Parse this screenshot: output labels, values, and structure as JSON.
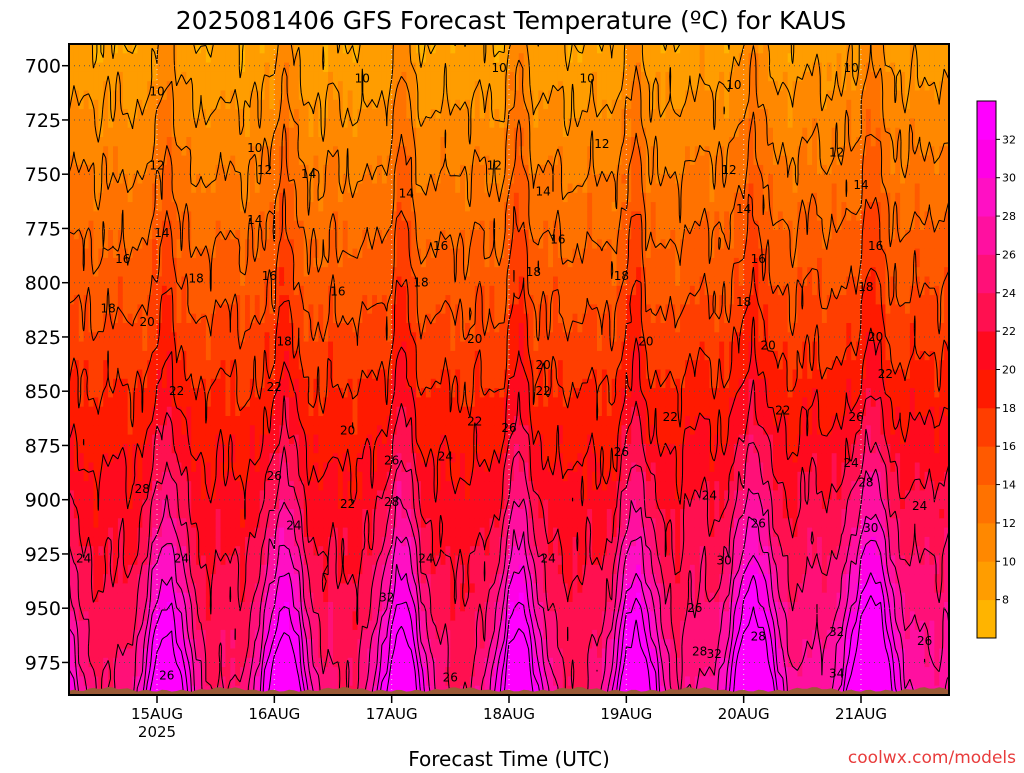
{
  "title": "2025081406 GFS Forecast Temperature (ºC) for KAUS",
  "xlabel": "Forecast Time (UTC)",
  "credit": "coolwx.com/models",
  "colors": {
    "line": "#000000",
    "ground": "#9b5a36",
    "background": "#ffffff"
  },
  "chart_data": {
    "type": "heatmap",
    "title": "2025081406 GFS Forecast Temperature (ºC) for KAUS",
    "xlabel": "Forecast Time (UTC)",
    "ylabel": "",
    "y_axis": {
      "quantity": "pressure (hPa)",
      "reversed": true,
      "range": [
        990,
        690
      ],
      "ticks": [
        700,
        725,
        750,
        775,
        800,
        825,
        850,
        875,
        900,
        925,
        950,
        975
      ]
    },
    "x_axis": {
      "range_hours": [
        0,
        180
      ],
      "ticks": [
        {
          "hour": 18,
          "label": "15AUG",
          "sublabel": "2025"
        },
        {
          "hour": 42,
          "label": "16AUG",
          "sublabel": ""
        },
        {
          "hour": 66,
          "label": "17AUG",
          "sublabel": ""
        },
        {
          "hour": 90,
          "label": "18AUG",
          "sublabel": ""
        },
        {
          "hour": 114,
          "label": "19AUG",
          "sublabel": ""
        },
        {
          "hour": 138,
          "label": "20AUG",
          "sublabel": ""
        },
        {
          "hour": 162,
          "label": "21AUG",
          "sublabel": ""
        }
      ]
    },
    "colorbar": {
      "levels": [
        6,
        8,
        10,
        12,
        14,
        16,
        18,
        20,
        22,
        24,
        26,
        28,
        30,
        32,
        34
      ],
      "tick_labels": [
        8,
        10,
        12,
        14,
        16,
        18,
        20,
        22,
        24,
        26,
        28,
        30,
        32
      ],
      "colors": [
        "#ffb400",
        "#ff9d00",
        "#ff8800",
        "#ff7200",
        "#ff5a00",
        "#ff3e00",
        "#ff1a00",
        "#ff0a1e",
        "#ff1050",
        "#ff1078",
        "#ff10a0",
        "#ff10c4",
        "#ff00e6",
        "#ff00ff"
      ]
    },
    "contour_labels": [
      {
        "value": 10,
        "hour": 18,
        "pressure": 712
      },
      {
        "value": 10,
        "hour": 38,
        "pressure": 738
      },
      {
        "value": 10,
        "hour": 60,
        "pressure": 706
      },
      {
        "value": 10,
        "hour": 88,
        "pressure": 701
      },
      {
        "value": 10,
        "hour": 106,
        "pressure": 706
      },
      {
        "value": 10,
        "hour": 136,
        "pressure": 709
      },
      {
        "value": 10,
        "hour": 160,
        "pressure": 701
      },
      {
        "value": 12,
        "hour": 18,
        "pressure": 746
      },
      {
        "value": 12,
        "hour": 40,
        "pressure": 748
      },
      {
        "value": 12,
        "hour": 87,
        "pressure": 746
      },
      {
        "value": 12,
        "hour": 109,
        "pressure": 736
      },
      {
        "value": 12,
        "hour": 135,
        "pressure": 748
      },
      {
        "value": 12,
        "hour": 157,
        "pressure": 740
      },
      {
        "value": 14,
        "hour": 19,
        "pressure": 777
      },
      {
        "value": 14,
        "hour": 38,
        "pressure": 771
      },
      {
        "value": 14,
        "hour": 49,
        "pressure": 750
      },
      {
        "value": 14,
        "hour": 69,
        "pressure": 759
      },
      {
        "value": 14,
        "hour": 97,
        "pressure": 758
      },
      {
        "value": 14,
        "hour": 138,
        "pressure": 766
      },
      {
        "value": 14,
        "hour": 162,
        "pressure": 755
      },
      {
        "value": 16,
        "hour": 11,
        "pressure": 789
      },
      {
        "value": 16,
        "hour": 41,
        "pressure": 797
      },
      {
        "value": 16,
        "hour": 55,
        "pressure": 804
      },
      {
        "value": 16,
        "hour": 76,
        "pressure": 783
      },
      {
        "value": 16,
        "hour": 100,
        "pressure": 780
      },
      {
        "value": 16,
        "hour": 141,
        "pressure": 789
      },
      {
        "value": 16,
        "hour": 165,
        "pressure": 783
      },
      {
        "value": 18,
        "hour": 8,
        "pressure": 812
      },
      {
        "value": 18,
        "hour": 26,
        "pressure": 798
      },
      {
        "value": 18,
        "hour": 44,
        "pressure": 827
      },
      {
        "value": 18,
        "hour": 72,
        "pressure": 800
      },
      {
        "value": 18,
        "hour": 95,
        "pressure": 795
      },
      {
        "value": 18,
        "hour": 113,
        "pressure": 797
      },
      {
        "value": 18,
        "hour": 138,
        "pressure": 809
      },
      {
        "value": 18,
        "hour": 163,
        "pressure": 802
      },
      {
        "value": 20,
        "hour": 16,
        "pressure": 818
      },
      {
        "value": 20,
        "hour": 57,
        "pressure": 868
      },
      {
        "value": 20,
        "hour": 83,
        "pressure": 826
      },
      {
        "value": 20,
        "hour": 97,
        "pressure": 838
      },
      {
        "value": 20,
        "hour": 118,
        "pressure": 827
      },
      {
        "value": 20,
        "hour": 143,
        "pressure": 829
      },
      {
        "value": 20,
        "hour": 165,
        "pressure": 825
      },
      {
        "value": 22,
        "hour": 22,
        "pressure": 850
      },
      {
        "value": 22,
        "hour": 42,
        "pressure": 848
      },
      {
        "value": 22,
        "hour": 57,
        "pressure": 902
      },
      {
        "value": 22,
        "hour": 83,
        "pressure": 864
      },
      {
        "value": 22,
        "hour": 97,
        "pressure": 850
      },
      {
        "value": 22,
        "hour": 123,
        "pressure": 862
      },
      {
        "value": 22,
        "hour": 146,
        "pressure": 859
      },
      {
        "value": 22,
        "hour": 167,
        "pressure": 842
      },
      {
        "value": 24,
        "hour": 3,
        "pressure": 927
      },
      {
        "value": 24,
        "hour": 23,
        "pressure": 927
      },
      {
        "value": 24,
        "hour": 46,
        "pressure": 912
      },
      {
        "value": 24,
        "hour": 73,
        "pressure": 927
      },
      {
        "value": 24,
        "hour": 77,
        "pressure": 880
      },
      {
        "value": 24,
        "hour": 98,
        "pressure": 927
      },
      {
        "value": 24,
        "hour": 131,
        "pressure": 898
      },
      {
        "value": 24,
        "hour": 160,
        "pressure": 883
      },
      {
        "value": 24,
        "hour": 174,
        "pressure": 903
      },
      {
        "value": 26,
        "hour": 42,
        "pressure": 889
      },
      {
        "value": 26,
        "hour": 66,
        "pressure": 882
      },
      {
        "value": 26,
        "hour": 90,
        "pressure": 867
      },
      {
        "value": 26,
        "hour": 113,
        "pressure": 878
      },
      {
        "value": 26,
        "hour": 128,
        "pressure": 950
      },
      {
        "value": 26,
        "hour": 141,
        "pressure": 911
      },
      {
        "value": 26,
        "hour": 161,
        "pressure": 862
      },
      {
        "value": 26,
        "hour": 175,
        "pressure": 965
      },
      {
        "value": 26,
        "hour": 20,
        "pressure": 981
      },
      {
        "value": 26,
        "hour": 78,
        "pressure": 982
      },
      {
        "value": 28,
        "hour": 15,
        "pressure": 895
      },
      {
        "value": 28,
        "hour": 66,
        "pressure": 901
      },
      {
        "value": 28,
        "hour": 129,
        "pressure": 970
      },
      {
        "value": 28,
        "hour": 141,
        "pressure": 963
      },
      {
        "value": 28,
        "hour": 163,
        "pressure": 892
      },
      {
        "value": 30,
        "hour": 134,
        "pressure": 928
      },
      {
        "value": 30,
        "hour": 164,
        "pressure": 913
      },
      {
        "value": 32,
        "hour": 65,
        "pressure": 945
      },
      {
        "value": 32,
        "hour": 132,
        "pressure": 971
      },
      {
        "value": 32,
        "hour": 157,
        "pressure": 961
      },
      {
        "value": 34,
        "hour": 157,
        "pressure": 980
      }
    ]
  }
}
